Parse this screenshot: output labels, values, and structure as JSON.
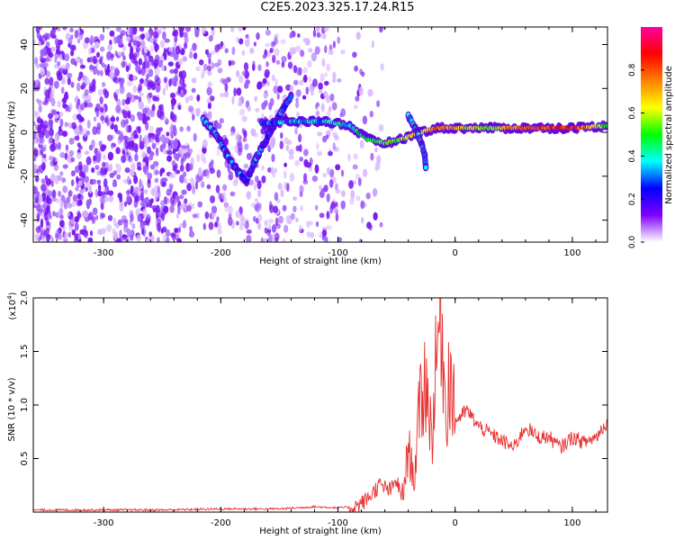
{
  "figure": {
    "title": "C2E5.2023.325.17.24.R15"
  },
  "chart_data": [
    {
      "type": "heatmap",
      "title": "",
      "xlabel": "Height of straight line (km)",
      "ylabel": "Frequency (Hz)",
      "xlim": [
        -360,
        130
      ],
      "ylim": [
        -50,
        48
      ],
      "xticks": [
        -300,
        -200,
        -100,
        0,
        100
      ],
      "yticks": [
        -40,
        -20,
        0,
        20,
        40
      ],
      "colorbar": {
        "label": "Normalized spectral amplitude",
        "range": [
          0,
          1
        ],
        "ticks": [
          0.0,
          0.2,
          0.4,
          0.6,
          0.8
        ],
        "colormap": [
          "#ffffff",
          "#8000ff",
          "#0000ff",
          "#00ffff",
          "#00ff00",
          "#ffff00",
          "#ff8000",
          "#ff0000",
          "#ff00a0"
        ]
      },
      "ridge": [
        {
          "x": -215,
          "y": 6,
          "v": 0.35
        },
        {
          "x": -205,
          "y": 0,
          "v": 0.35
        },
        {
          "x": -195,
          "y": -10,
          "v": 0.3
        },
        {
          "x": -185,
          "y": -18,
          "v": 0.3
        },
        {
          "x": -178,
          "y": -22,
          "v": 0.3
        },
        {
          "x": -170,
          "y": -12,
          "v": 0.35
        },
        {
          "x": -160,
          "y": -2,
          "v": 0.3
        },
        {
          "x": -150,
          "y": 8,
          "v": 0.3
        },
        {
          "x": -140,
          "y": 16,
          "v": 0.25
        },
        {
          "x": -165,
          "y": 4,
          "v": 0.3
        },
        {
          "x": -140,
          "y": 5,
          "v": 0.35
        },
        {
          "x": -110,
          "y": 5,
          "v": 0.35
        },
        {
          "x": -90,
          "y": 3,
          "v": 0.4
        },
        {
          "x": -75,
          "y": -3,
          "v": 0.45
        },
        {
          "x": -60,
          "y": -5,
          "v": 0.5
        },
        {
          "x": -45,
          "y": -3,
          "v": 0.55
        },
        {
          "x": -30,
          "y": 0,
          "v": 0.6
        },
        {
          "x": -15,
          "y": 2,
          "v": 0.75
        },
        {
          "x": 0,
          "y": 2,
          "v": 0.65
        },
        {
          "x": 30,
          "y": 2,
          "v": 0.55
        },
        {
          "x": 60,
          "y": 2,
          "v": 0.8
        },
        {
          "x": 100,
          "y": 2,
          "v": 0.85
        },
        {
          "x": 130,
          "y": 3,
          "v": 0.5
        }
      ],
      "branch": [
        {
          "x": -40,
          "y": 8,
          "v": 0.35
        },
        {
          "x": -32,
          "y": 0,
          "v": 0.35
        },
        {
          "x": -26,
          "y": -10,
          "v": 0.35
        },
        {
          "x": -25,
          "y": -16,
          "v": 0.35
        }
      ]
    },
    {
      "type": "line",
      "title": "",
      "xlabel": "Height of straight line (km)",
      "ylabel": "SNR (10 * v/v)",
      "yscale_label": "(x10",
      "yscale_exponent": "4",
      "yscale_close": ")",
      "xlim": [
        -360,
        130
      ],
      "ylim": [
        0,
        2.0
      ],
      "xticks": [
        -300,
        -200,
        -100,
        0,
        100
      ],
      "yticks": [
        0.5,
        1.0,
        1.5,
        2.0
      ],
      "line_color": "#e83030",
      "series": [
        {
          "values": [
            {
              "x": -360,
              "y": 0.02
            },
            {
              "x": -300,
              "y": 0.02
            },
            {
              "x": -250,
              "y": 0.02
            },
            {
              "x": -200,
              "y": 0.03
            },
            {
              "x": -150,
              "y": 0.03
            },
            {
              "x": -120,
              "y": 0.05
            },
            {
              "x": -100,
              "y": 0.04
            },
            {
              "x": -85,
              "y": 0.05
            },
            {
              "x": -75,
              "y": 0.12
            },
            {
              "x": -65,
              "y": 0.25
            },
            {
              "x": -55,
              "y": 0.2
            },
            {
              "x": -50,
              "y": 0.3
            },
            {
              "x": -45,
              "y": 0.1
            },
            {
              "x": -40,
              "y": 0.6
            },
            {
              "x": -35,
              "y": 0.3
            },
            {
              "x": -30,
              "y": 1.0
            },
            {
              "x": -25,
              "y": 1.25
            },
            {
              "x": -20,
              "y": 0.7
            },
            {
              "x": -15,
              "y": 1.55
            },
            {
              "x": -12,
              "y": 2.0
            },
            {
              "x": -8,
              "y": 0.9
            },
            {
              "x": -5,
              "y": 1.35
            },
            {
              "x": 0,
              "y": 0.85
            },
            {
              "x": 10,
              "y": 0.95
            },
            {
              "x": 20,
              "y": 0.8
            },
            {
              "x": 35,
              "y": 0.7
            },
            {
              "x": 50,
              "y": 0.6
            },
            {
              "x": 60,
              "y": 0.8
            },
            {
              "x": 70,
              "y": 0.7
            },
            {
              "x": 80,
              "y": 0.7
            },
            {
              "x": 90,
              "y": 0.6
            },
            {
              "x": 100,
              "y": 0.7
            },
            {
              "x": 110,
              "y": 0.65
            },
            {
              "x": 120,
              "y": 0.7
            },
            {
              "x": 130,
              "y": 0.85
            }
          ]
        }
      ]
    }
  ]
}
